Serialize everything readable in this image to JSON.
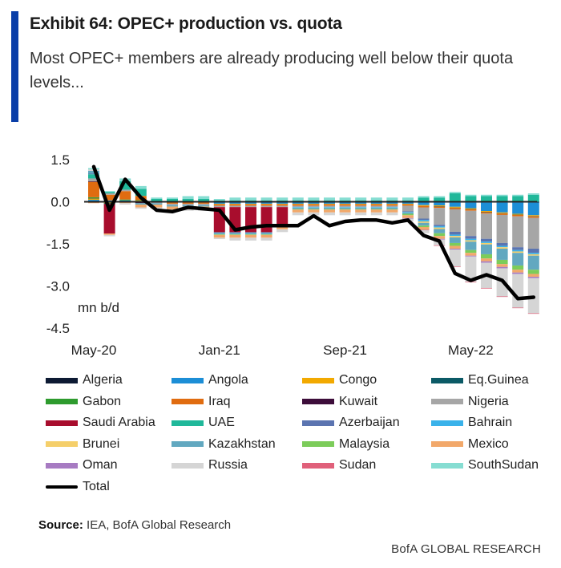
{
  "header": {
    "title": "Exhibit 64: OPEC+ production vs. quota",
    "subtitle": "Most OPEC+ members are already producing well below their quota levels..."
  },
  "source": {
    "label": "Source:",
    "text": "IEA, BofA Global Research"
  },
  "footer": {
    "brand": "BofA GLOBAL RESEARCH"
  },
  "chart_data": {
    "type": "bar",
    "stacked": true,
    "unit_label": "mn b/d",
    "ylim": [
      -4.5,
      1.5
    ],
    "yticks": [
      "1.5",
      "0.0",
      "-1.5",
      "-3.0",
      "-4.5"
    ],
    "ytick_values": [
      1.5,
      0.0,
      -1.5,
      -3.0,
      -4.5
    ],
    "xtick_labels": [
      "May-20",
      "Jan-21",
      "Sep-21",
      "May-22"
    ],
    "xtick_index": [
      0,
      8,
      16,
      24
    ],
    "categories": [
      "May-20",
      "Jun-20",
      "Jul-20",
      "Aug-20",
      "Sep-20",
      "Oct-20",
      "Nov-20",
      "Dec-20",
      "Jan-21",
      "Feb-21",
      "Mar-21",
      "Apr-21",
      "May-21",
      "Jun-21",
      "Jul-21",
      "Aug-21",
      "Sep-21",
      "Oct-21",
      "Nov-21",
      "Dec-21",
      "Jan-22",
      "Feb-22",
      "Mar-22",
      "Apr-22",
      "May-22",
      "Jun-22",
      "Jul-22",
      "Aug-22",
      "Sep-22"
    ],
    "series": [
      {
        "name": "Algeria",
        "color": "#0d1a33",
        "values": [
          0.02,
          -0.02,
          0,
          0,
          0,
          0,
          0,
          0,
          -0.02,
          -0.02,
          -0.02,
          -0.02,
          -0.02,
          -0.02,
          -0.02,
          -0.02,
          -0.02,
          -0.02,
          -0.02,
          -0.02,
          -0.02,
          -0.02,
          -0.03,
          -0.03,
          -0.03,
          -0.03,
          -0.03,
          -0.03,
          -0.03
        ]
      },
      {
        "name": "Angola",
        "color": "#1c8ed6",
        "values": [
          0.05,
          0.05,
          0.05,
          0.02,
          0,
          0,
          0,
          0,
          -0.05,
          -0.05,
          -0.05,
          -0.05,
          -0.05,
          -0.05,
          -0.05,
          -0.05,
          -0.05,
          -0.05,
          -0.05,
          -0.05,
          -0.05,
          -0.1,
          -0.1,
          -0.15,
          -0.2,
          -0.3,
          -0.35,
          -0.4,
          -0.45
        ]
      },
      {
        "name": "Congo",
        "color": "#f2a900",
        "values": [
          0.05,
          -0.02,
          0,
          0.02,
          0,
          -0.02,
          -0.02,
          -0.02,
          -0.02,
          -0.02,
          -0.02,
          -0.02,
          -0.02,
          -0.02,
          -0.02,
          -0.02,
          -0.02,
          -0.02,
          -0.02,
          -0.02,
          -0.02,
          -0.03,
          -0.03,
          -0.03,
          -0.03,
          -0.03,
          -0.03,
          -0.03,
          -0.03
        ]
      },
      {
        "name": "Eq.Guinea",
        "color": "#0b5a66",
        "values": [
          0.01,
          0,
          0,
          0,
          0,
          0,
          0,
          0,
          0,
          0,
          0,
          0,
          0,
          0,
          0,
          0,
          0,
          0,
          0,
          0,
          0,
          0,
          -0.01,
          -0.01,
          -0.01,
          -0.01,
          -0.01,
          -0.01,
          -0.01
        ]
      },
      {
        "name": "Gabon",
        "color": "#2e9b2e",
        "values": [
          0.03,
          -0.02,
          0.03,
          0.02,
          0,
          0,
          0,
          0,
          0,
          0,
          0,
          0,
          0,
          0,
          0,
          0,
          0,
          0,
          0,
          0,
          0,
          0,
          0,
          0,
          0,
          0,
          0,
          0,
          0
        ]
      },
      {
        "name": "Iraq",
        "color": "#e06c10",
        "values": [
          0.55,
          0.2,
          0.3,
          0.15,
          0,
          -0.05,
          -0.05,
          -0.05,
          -0.05,
          -0.05,
          -0.05,
          -0.05,
          -0.05,
          -0.05,
          -0.05,
          -0.05,
          -0.05,
          -0.05,
          -0.05,
          -0.05,
          -0.05,
          -0.05,
          -0.05,
          -0.05,
          -0.05,
          -0.05,
          -0.05,
          -0.05,
          -0.05
        ]
      },
      {
        "name": "Kuwait",
        "color": "#3d0d3a",
        "values": [
          0.02,
          -0.02,
          0,
          -0.05,
          0,
          0,
          0,
          0,
          0,
          0,
          0,
          0,
          0,
          0,
          0,
          0,
          0,
          0,
          0,
          0,
          0,
          0,
          0,
          0,
          0,
          0,
          0,
          0,
          0
        ]
      },
      {
        "name": "Nigeria",
        "color": "#a6a6a6",
        "values": [
          0.1,
          0.05,
          0.05,
          0,
          -0.05,
          -0.05,
          -0.05,
          -0.05,
          -0.05,
          -0.05,
          -0.05,
          -0.05,
          -0.05,
          -0.05,
          -0.05,
          -0.05,
          -0.05,
          -0.05,
          -0.05,
          -0.05,
          -0.2,
          -0.4,
          -0.6,
          -0.8,
          -0.9,
          -0.9,
          -1.0,
          -1.1,
          -1.1
        ]
      },
      {
        "name": "Saudi Arabia",
        "color": "#a80d2d",
        "values": [
          0,
          -1.05,
          0,
          0,
          0,
          0,
          0,
          0,
          -0.9,
          -0.9,
          -0.9,
          -0.9,
          -0.6,
          0,
          0,
          0,
          0,
          0,
          0,
          0,
          0,
          0,
          0,
          0,
          0,
          0,
          0,
          0,
          0
        ]
      },
      {
        "name": "UAE",
        "color": "#20b89a",
        "values": [
          0.15,
          0.05,
          0.3,
          0.25,
          0.1,
          0.1,
          0.1,
          0.1,
          0.05,
          0.05,
          0.05,
          0.05,
          0.05,
          0.05,
          0.05,
          0.05,
          0.05,
          0.05,
          0.05,
          0.05,
          0.05,
          0.15,
          0.15,
          0.3,
          0.2,
          0.2,
          0.2,
          0.2,
          0.25
        ]
      },
      {
        "name": "Azerbaijan",
        "color": "#5b74b0",
        "values": [
          0.02,
          0,
          0,
          0,
          0,
          0,
          0,
          0,
          0,
          0,
          0,
          0,
          0,
          0,
          0,
          0,
          0,
          0,
          0,
          0,
          -0.02,
          -0.05,
          -0.05,
          -0.1,
          -0.1,
          -0.1,
          -0.1,
          -0.1,
          -0.15
        ]
      },
      {
        "name": "Bahrain",
        "color": "#3ab2ea",
        "values": [
          0,
          0,
          0,
          0,
          0,
          0,
          0,
          0,
          -0.02,
          -0.02,
          -0.02,
          -0.02,
          -0.02,
          -0.02,
          -0.02,
          -0.02,
          -0.02,
          -0.02,
          -0.02,
          -0.02,
          -0.02,
          -0.05,
          -0.05,
          -0.05,
          -0.05,
          -0.05,
          -0.05,
          -0.05,
          -0.05
        ]
      },
      {
        "name": "Brunei",
        "color": "#f5cf6a",
        "values": [
          0,
          0,
          0,
          0,
          0,
          0,
          0,
          0,
          0,
          0,
          0,
          0,
          0,
          0,
          0,
          0,
          0,
          0,
          0,
          0,
          0,
          -0.05,
          -0.05,
          -0.05,
          -0.05,
          -0.05,
          -0.05,
          -0.05,
          -0.05
        ]
      },
      {
        "name": "Kazakhstan",
        "color": "#62a8c0",
        "values": [
          0.1,
          0,
          0,
          -0.05,
          -0.05,
          -0.05,
          -0.05,
          -0.05,
          -0.05,
          -0.05,
          -0.05,
          -0.05,
          -0.05,
          -0.05,
          -0.05,
          -0.05,
          -0.05,
          -0.05,
          -0.05,
          -0.05,
          -0.05,
          -0.1,
          -0.15,
          -0.2,
          -0.3,
          -0.35,
          -0.4,
          -0.45,
          -0.5
        ]
      },
      {
        "name": "Malaysia",
        "color": "#7ccc5a",
        "values": [
          0,
          0,
          0,
          0,
          0,
          0,
          0,
          0,
          -0.02,
          -0.02,
          -0.02,
          -0.02,
          -0.02,
          -0.02,
          -0.02,
          -0.02,
          -0.02,
          -0.02,
          -0.02,
          -0.02,
          -0.05,
          -0.05,
          -0.1,
          -0.1,
          -0.1,
          -0.15,
          -0.15,
          -0.15,
          -0.15
        ]
      },
      {
        "name": "Mexico",
        "color": "#f2a86a",
        "values": [
          -0.05,
          -0.05,
          -0.05,
          -0.1,
          -0.1,
          -0.1,
          -0.1,
          -0.1,
          -0.1,
          -0.1,
          -0.1,
          -0.1,
          -0.1,
          -0.1,
          -0.1,
          -0.1,
          -0.1,
          -0.1,
          -0.1,
          -0.1,
          -0.1,
          -0.1,
          -0.1,
          -0.1,
          -0.1,
          -0.1,
          -0.1,
          -0.1,
          -0.1
        ]
      },
      {
        "name": "Oman",
        "color": "#a77bc2",
        "values": [
          0,
          0,
          0,
          0,
          0,
          0,
          0,
          0,
          0,
          0,
          0,
          0,
          0,
          0,
          0,
          0,
          0,
          0,
          0,
          0,
          -0.02,
          -0.02,
          -0.03,
          -0.03,
          -0.03,
          -0.05,
          -0.05,
          -0.05,
          -0.05
        ]
      },
      {
        "name": "Russia",
        "color": "#d5d5d5",
        "values": [
          0.05,
          -0.05,
          -0.05,
          -0.05,
          -0.05,
          -0.05,
          -0.05,
          -0.05,
          -0.05,
          -0.1,
          -0.1,
          -0.1,
          -0.1,
          -0.1,
          -0.1,
          -0.1,
          -0.1,
          -0.1,
          -0.1,
          -0.1,
          -0.1,
          -0.1,
          -0.2,
          -0.6,
          -0.9,
          -0.9,
          -1.0,
          -1.2,
          -1.25
        ]
      },
      {
        "name": "Sudan",
        "color": "#e0607a",
        "values": [
          0,
          0,
          0,
          0,
          0,
          0,
          0,
          0,
          0,
          0,
          0,
          0,
          0,
          0,
          0,
          0,
          0,
          0,
          0,
          0,
          0,
          0,
          -0.02,
          -0.02,
          -0.02,
          -0.02,
          -0.02,
          -0.02,
          -0.02
        ]
      },
      {
        "name": "SouthSudan",
        "color": "#86ddd2",
        "values": [
          0.05,
          0.03,
          0.1,
          0.1,
          0.05,
          0.05,
          0.1,
          0.1,
          0.05,
          0.1,
          0.1,
          0.1,
          0.1,
          0.1,
          0.1,
          0.1,
          0.1,
          0.1,
          0.1,
          0.1,
          0.1,
          0.05,
          0.05,
          0.05,
          0.05,
          0.05,
          0.05,
          0.05,
          0.05
        ]
      }
    ],
    "total": {
      "name": "Total",
      "color": "#000000",
      "values": [
        1.25,
        -0.3,
        0.8,
        0.15,
        -0.3,
        -0.35,
        -0.2,
        -0.25,
        -0.3,
        -1.0,
        -0.9,
        -0.85,
        -0.85,
        -0.85,
        -0.5,
        -0.85,
        -0.7,
        -0.65,
        -0.65,
        -0.75,
        -0.65,
        -1.2,
        -1.4,
        -2.55,
        -2.8,
        -2.6,
        -2.8,
        -3.45,
        -3.4
      ]
    },
    "legend": {
      "columns": 4,
      "items": [
        "Algeria",
        "Angola",
        "Congo",
        "Eq.Guinea",
        "Gabon",
        "Iraq",
        "Kuwait",
        "Nigeria",
        "Saudi Arabia",
        "UAE",
        "Azerbaijan",
        "Bahrain",
        "Brunei",
        "Kazakhstan",
        "Malaysia",
        "Mexico",
        "Oman",
        "Russia",
        "Sudan",
        "SouthSudan",
        "Total"
      ]
    }
  }
}
